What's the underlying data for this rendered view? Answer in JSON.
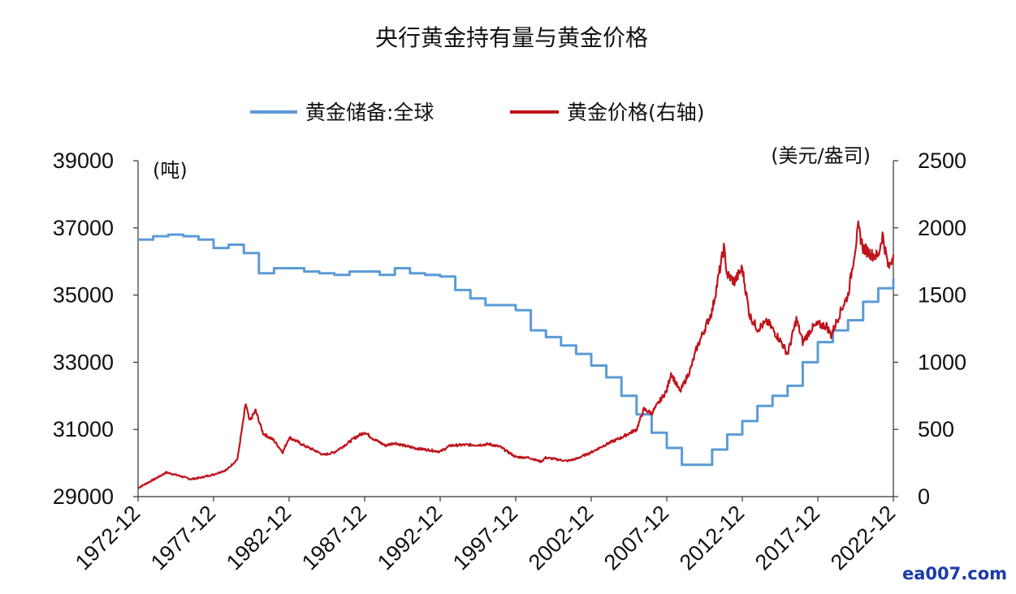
{
  "chart_data": {
    "type": "line",
    "title": "央行黄金持有量与黄金价格",
    "legend_position": "top-center",
    "grid": false,
    "left_axis": {
      "unit_label": "(吨)",
      "ylim": [
        29000,
        39000
      ],
      "ticks": [
        29000,
        31000,
        33000,
        35000,
        37000,
        39000
      ],
      "tick_labels": [
        "29000",
        "31000",
        "33000",
        "35000",
        "37000",
        "39000"
      ]
    },
    "right_axis": {
      "unit_label": "(美元/盎司)",
      "ylim": [
        0,
        2500
      ],
      "ticks": [
        0,
        500,
        1000,
        1500,
        2000,
        2500
      ],
      "tick_labels": [
        "0",
        "500",
        "1000",
        "1500",
        "2000",
        "2500"
      ]
    },
    "x_axis": {
      "xlim": [
        1972.92,
        2022.92
      ],
      "tick_values": [
        1972.92,
        1977.92,
        1982.92,
        1987.92,
        1992.92,
        1997.92,
        2002.92,
        2007.92,
        2012.92,
        2017.92,
        2022.92
      ],
      "tick_labels": [
        "1972-12",
        "1977-12",
        "1982-12",
        "1987-12",
        "1992-12",
        "1997-12",
        "2002-12",
        "2007-12",
        "2012-12",
        "2017-12",
        "2022-12"
      ]
    },
    "series": [
      {
        "name": "黄金储备:全球",
        "axis": "left",
        "color": "#5b9bd5",
        "step": true,
        "points": [
          [
            1972.92,
            36650
          ],
          [
            1973.92,
            36750
          ],
          [
            1974.92,
            36800
          ],
          [
            1975.92,
            36750
          ],
          [
            1976.92,
            36650
          ],
          [
            1977.92,
            36400
          ],
          [
            1978.92,
            36500
          ],
          [
            1979.92,
            36250
          ],
          [
            1980.92,
            35650
          ],
          [
            1981.92,
            35800
          ],
          [
            1982.92,
            35800
          ],
          [
            1983.92,
            35700
          ],
          [
            1984.92,
            35650
          ],
          [
            1985.92,
            35600
          ],
          [
            1986.92,
            35700
          ],
          [
            1987.92,
            35700
          ],
          [
            1988.92,
            35600
          ],
          [
            1989.92,
            35800
          ],
          [
            1990.92,
            35650
          ],
          [
            1991.92,
            35600
          ],
          [
            1992.92,
            35550
          ],
          [
            1993.92,
            35150
          ],
          [
            1994.92,
            34900
          ],
          [
            1995.92,
            34700
          ],
          [
            1996.92,
            34700
          ],
          [
            1997.92,
            34550
          ],
          [
            1998.92,
            33950
          ],
          [
            1999.92,
            33750
          ],
          [
            2000.92,
            33500
          ],
          [
            2001.92,
            33250
          ],
          [
            2002.92,
            32900
          ],
          [
            2003.92,
            32550
          ],
          [
            2004.92,
            32000
          ],
          [
            2005.92,
            31450
          ],
          [
            2006.92,
            30900
          ],
          [
            2007.92,
            30450
          ],
          [
            2008.92,
            29950
          ],
          [
            2009.92,
            29950
          ],
          [
            2010.92,
            30400
          ],
          [
            2011.92,
            30850
          ],
          [
            2012.92,
            31250
          ],
          [
            2013.92,
            31700
          ],
          [
            2014.92,
            32000
          ],
          [
            2015.92,
            32300
          ],
          [
            2016.92,
            33000
          ],
          [
            2017.92,
            33600
          ],
          [
            2018.92,
            33950
          ],
          [
            2019.92,
            34250
          ],
          [
            2020.92,
            34800
          ],
          [
            2021.92,
            35200
          ],
          [
            2022.92,
            35500
          ]
        ]
      },
      {
        "name": "黄金价格(右轴)",
        "axis": "right",
        "color": "#c0141c",
        "step": false,
        "points": [
          [
            1972.92,
            65
          ],
          [
            1973.5,
            100
          ],
          [
            1974.0,
            130
          ],
          [
            1974.8,
            180
          ],
          [
            1975.5,
            160
          ],
          [
            1976.4,
            130
          ],
          [
            1977.0,
            140
          ],
          [
            1977.92,
            165
          ],
          [
            1978.8,
            200
          ],
          [
            1979.5,
            280
          ],
          [
            1980.05,
            690
          ],
          [
            1980.3,
            560
          ],
          [
            1980.7,
            640
          ],
          [
            1981.2,
            470
          ],
          [
            1981.9,
            420
          ],
          [
            1982.5,
            330
          ],
          [
            1982.92,
            440
          ],
          [
            1983.3,
            420
          ],
          [
            1983.9,
            380
          ],
          [
            1984.5,
            350
          ],
          [
            1985.2,
            310
          ],
          [
            1985.9,
            330
          ],
          [
            1986.7,
            390
          ],
          [
            1987.3,
            440
          ],
          [
            1987.92,
            480
          ],
          [
            1988.5,
            430
          ],
          [
            1989.3,
            380
          ],
          [
            1989.9,
            400
          ],
          [
            1990.5,
            380
          ],
          [
            1991.3,
            360
          ],
          [
            1992.3,
            345
          ],
          [
            1992.92,
            335
          ],
          [
            1993.6,
            380
          ],
          [
            1994.5,
            385
          ],
          [
            1995.5,
            385
          ],
          [
            1996.2,
            390
          ],
          [
            1996.9,
            370
          ],
          [
            1997.92,
            295
          ],
          [
            1998.8,
            290
          ],
          [
            1999.6,
            260
          ],
          [
            1999.9,
            290
          ],
          [
            2000.5,
            280
          ],
          [
            2001.3,
            265
          ],
          [
            2001.9,
            280
          ],
          [
            2002.92,
            330
          ],
          [
            2003.92,
            390
          ],
          [
            2004.92,
            440
          ],
          [
            2005.92,
            500
          ],
          [
            2006.4,
            650
          ],
          [
            2006.92,
            620
          ],
          [
            2007.92,
            790
          ],
          [
            2008.2,
            920
          ],
          [
            2008.8,
            780
          ],
          [
            2009.5,
            950
          ],
          [
            2009.92,
            1110
          ],
          [
            2010.92,
            1380
          ],
          [
            2011.7,
            1850
          ],
          [
            2011.92,
            1650
          ],
          [
            2012.4,
            1600
          ],
          [
            2012.92,
            1700
          ],
          [
            2013.4,
            1350
          ],
          [
            2013.92,
            1250
          ],
          [
            2014.6,
            1300
          ],
          [
            2015.5,
            1150
          ],
          [
            2015.92,
            1060
          ],
          [
            2016.5,
            1320
          ],
          [
            2016.92,
            1150
          ],
          [
            2017.5,
            1250
          ],
          [
            2017.92,
            1280
          ],
          [
            2018.5,
            1270
          ],
          [
            2018.8,
            1200
          ],
          [
            2019.5,
            1400
          ],
          [
            2019.92,
            1500
          ],
          [
            2020.6,
            2000
          ],
          [
            2020.92,
            1850
          ],
          [
            2021.5,
            1800
          ],
          [
            2021.92,
            1790
          ],
          [
            2022.2,
            1950
          ],
          [
            2022.6,
            1700
          ],
          [
            2022.92,
            1800
          ]
        ]
      }
    ]
  },
  "watermark": "ea007.com"
}
